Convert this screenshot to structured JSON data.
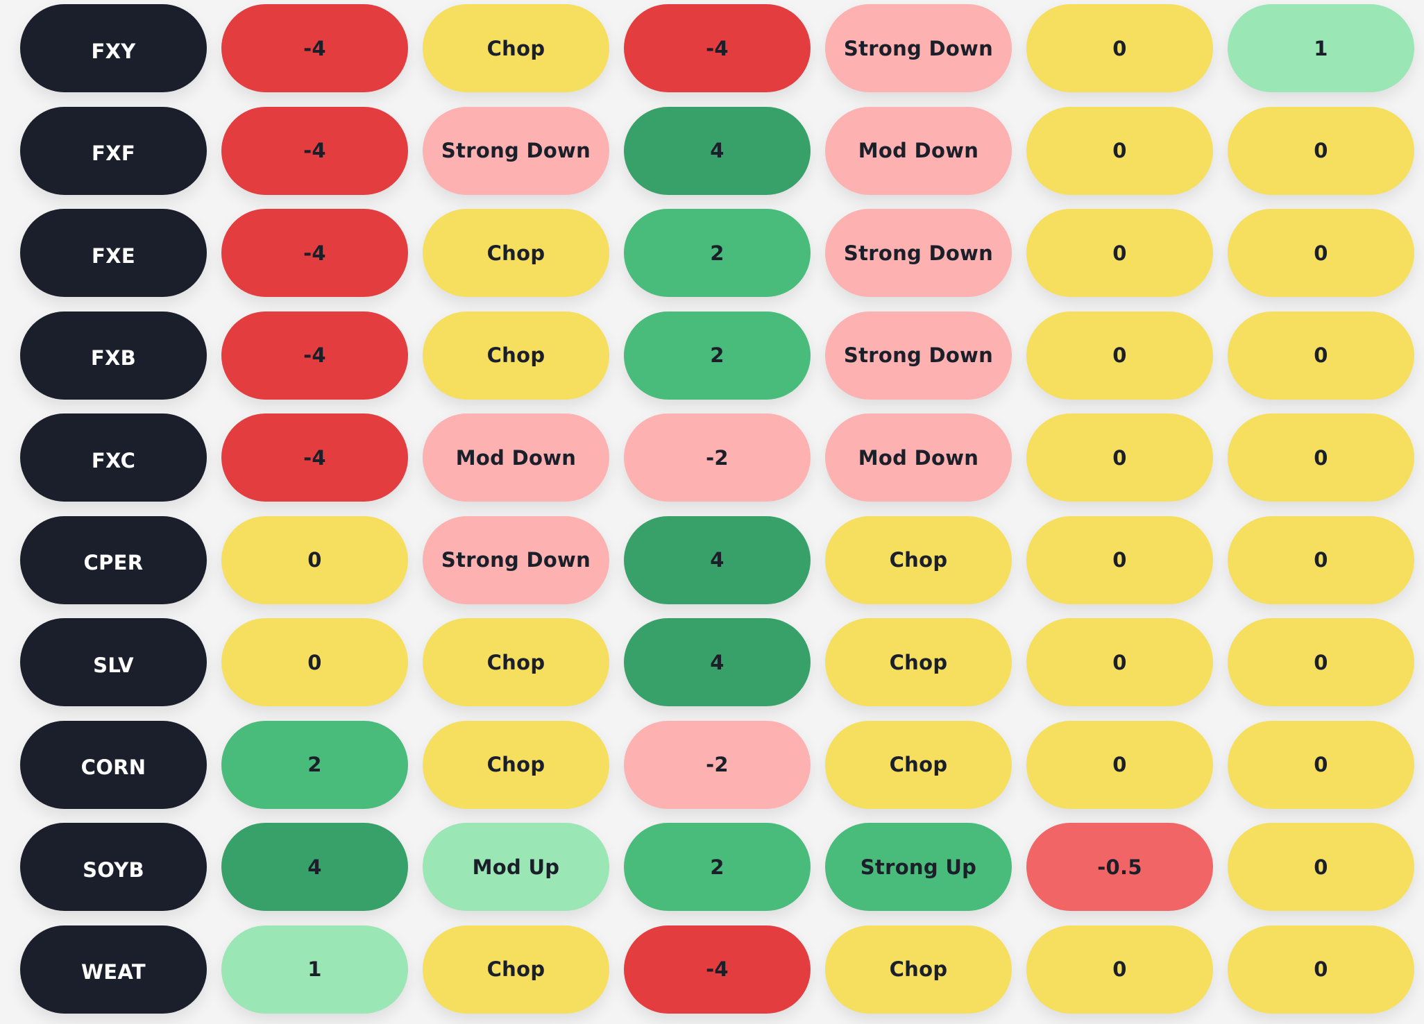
{
  "colors": {
    "ticker_bg": "#1b1f2b",
    "score_neg4": "#e43d3f",
    "score_neg0_5": "#f26566",
    "score_neg2": "#fdb1b0",
    "score_zero": "#f6df5f",
    "score_pos1": "#9ae6b4",
    "score_pos2": "#49bb7a",
    "score_pos4": "#38a169",
    "trend_chop": "#f6df5f",
    "trend_down": "#fdb1b0",
    "trend_mod_up": "#9ae6b4",
    "trend_strong_up": "#49bb7a"
  },
  "rows": [
    {
      "ticker": "FXY",
      "c1": "-4",
      "c2": "Chop",
      "c3": "-4",
      "c4": "Strong Down",
      "c5": "0",
      "c6": "1"
    },
    {
      "ticker": "FXF",
      "c1": "-4",
      "c2": "Strong Down",
      "c3": "4",
      "c4": "Mod Down",
      "c5": "0",
      "c6": "0"
    },
    {
      "ticker": "FXE",
      "c1": "-4",
      "c2": "Chop",
      "c3": "2",
      "c4": "Strong Down",
      "c5": "0",
      "c6": "0"
    },
    {
      "ticker": "FXB",
      "c1": "-4",
      "c2": "Chop",
      "c3": "2",
      "c4": "Strong Down",
      "c5": "0",
      "c6": "0"
    },
    {
      "ticker": "FXC",
      "c1": "-4",
      "c2": "Mod Down",
      "c3": "-2",
      "c4": "Mod Down",
      "c5": "0",
      "c6": "0"
    },
    {
      "ticker": "CPER",
      "c1": "0",
      "c2": "Strong Down",
      "c3": "4",
      "c4": "Chop",
      "c5": "0",
      "c6": "0"
    },
    {
      "ticker": "SLV",
      "c1": "0",
      "c2": "Chop",
      "c3": "4",
      "c4": "Chop",
      "c5": "0",
      "c6": "0"
    },
    {
      "ticker": "CORN",
      "c1": "2",
      "c2": "Chop",
      "c3": "-2",
      "c4": "Chop",
      "c5": "0",
      "c6": "0"
    },
    {
      "ticker": "SOYB",
      "c1": "4",
      "c2": "Mod Up",
      "c3": "2",
      "c4": "Strong Up",
      "c5": "-0.5",
      "c6": "0"
    },
    {
      "ticker": "WEAT",
      "c1": "1",
      "c2": "Chop",
      "c3": "-4",
      "c4": "Chop",
      "c5": "0",
      "c6": "0"
    }
  ]
}
